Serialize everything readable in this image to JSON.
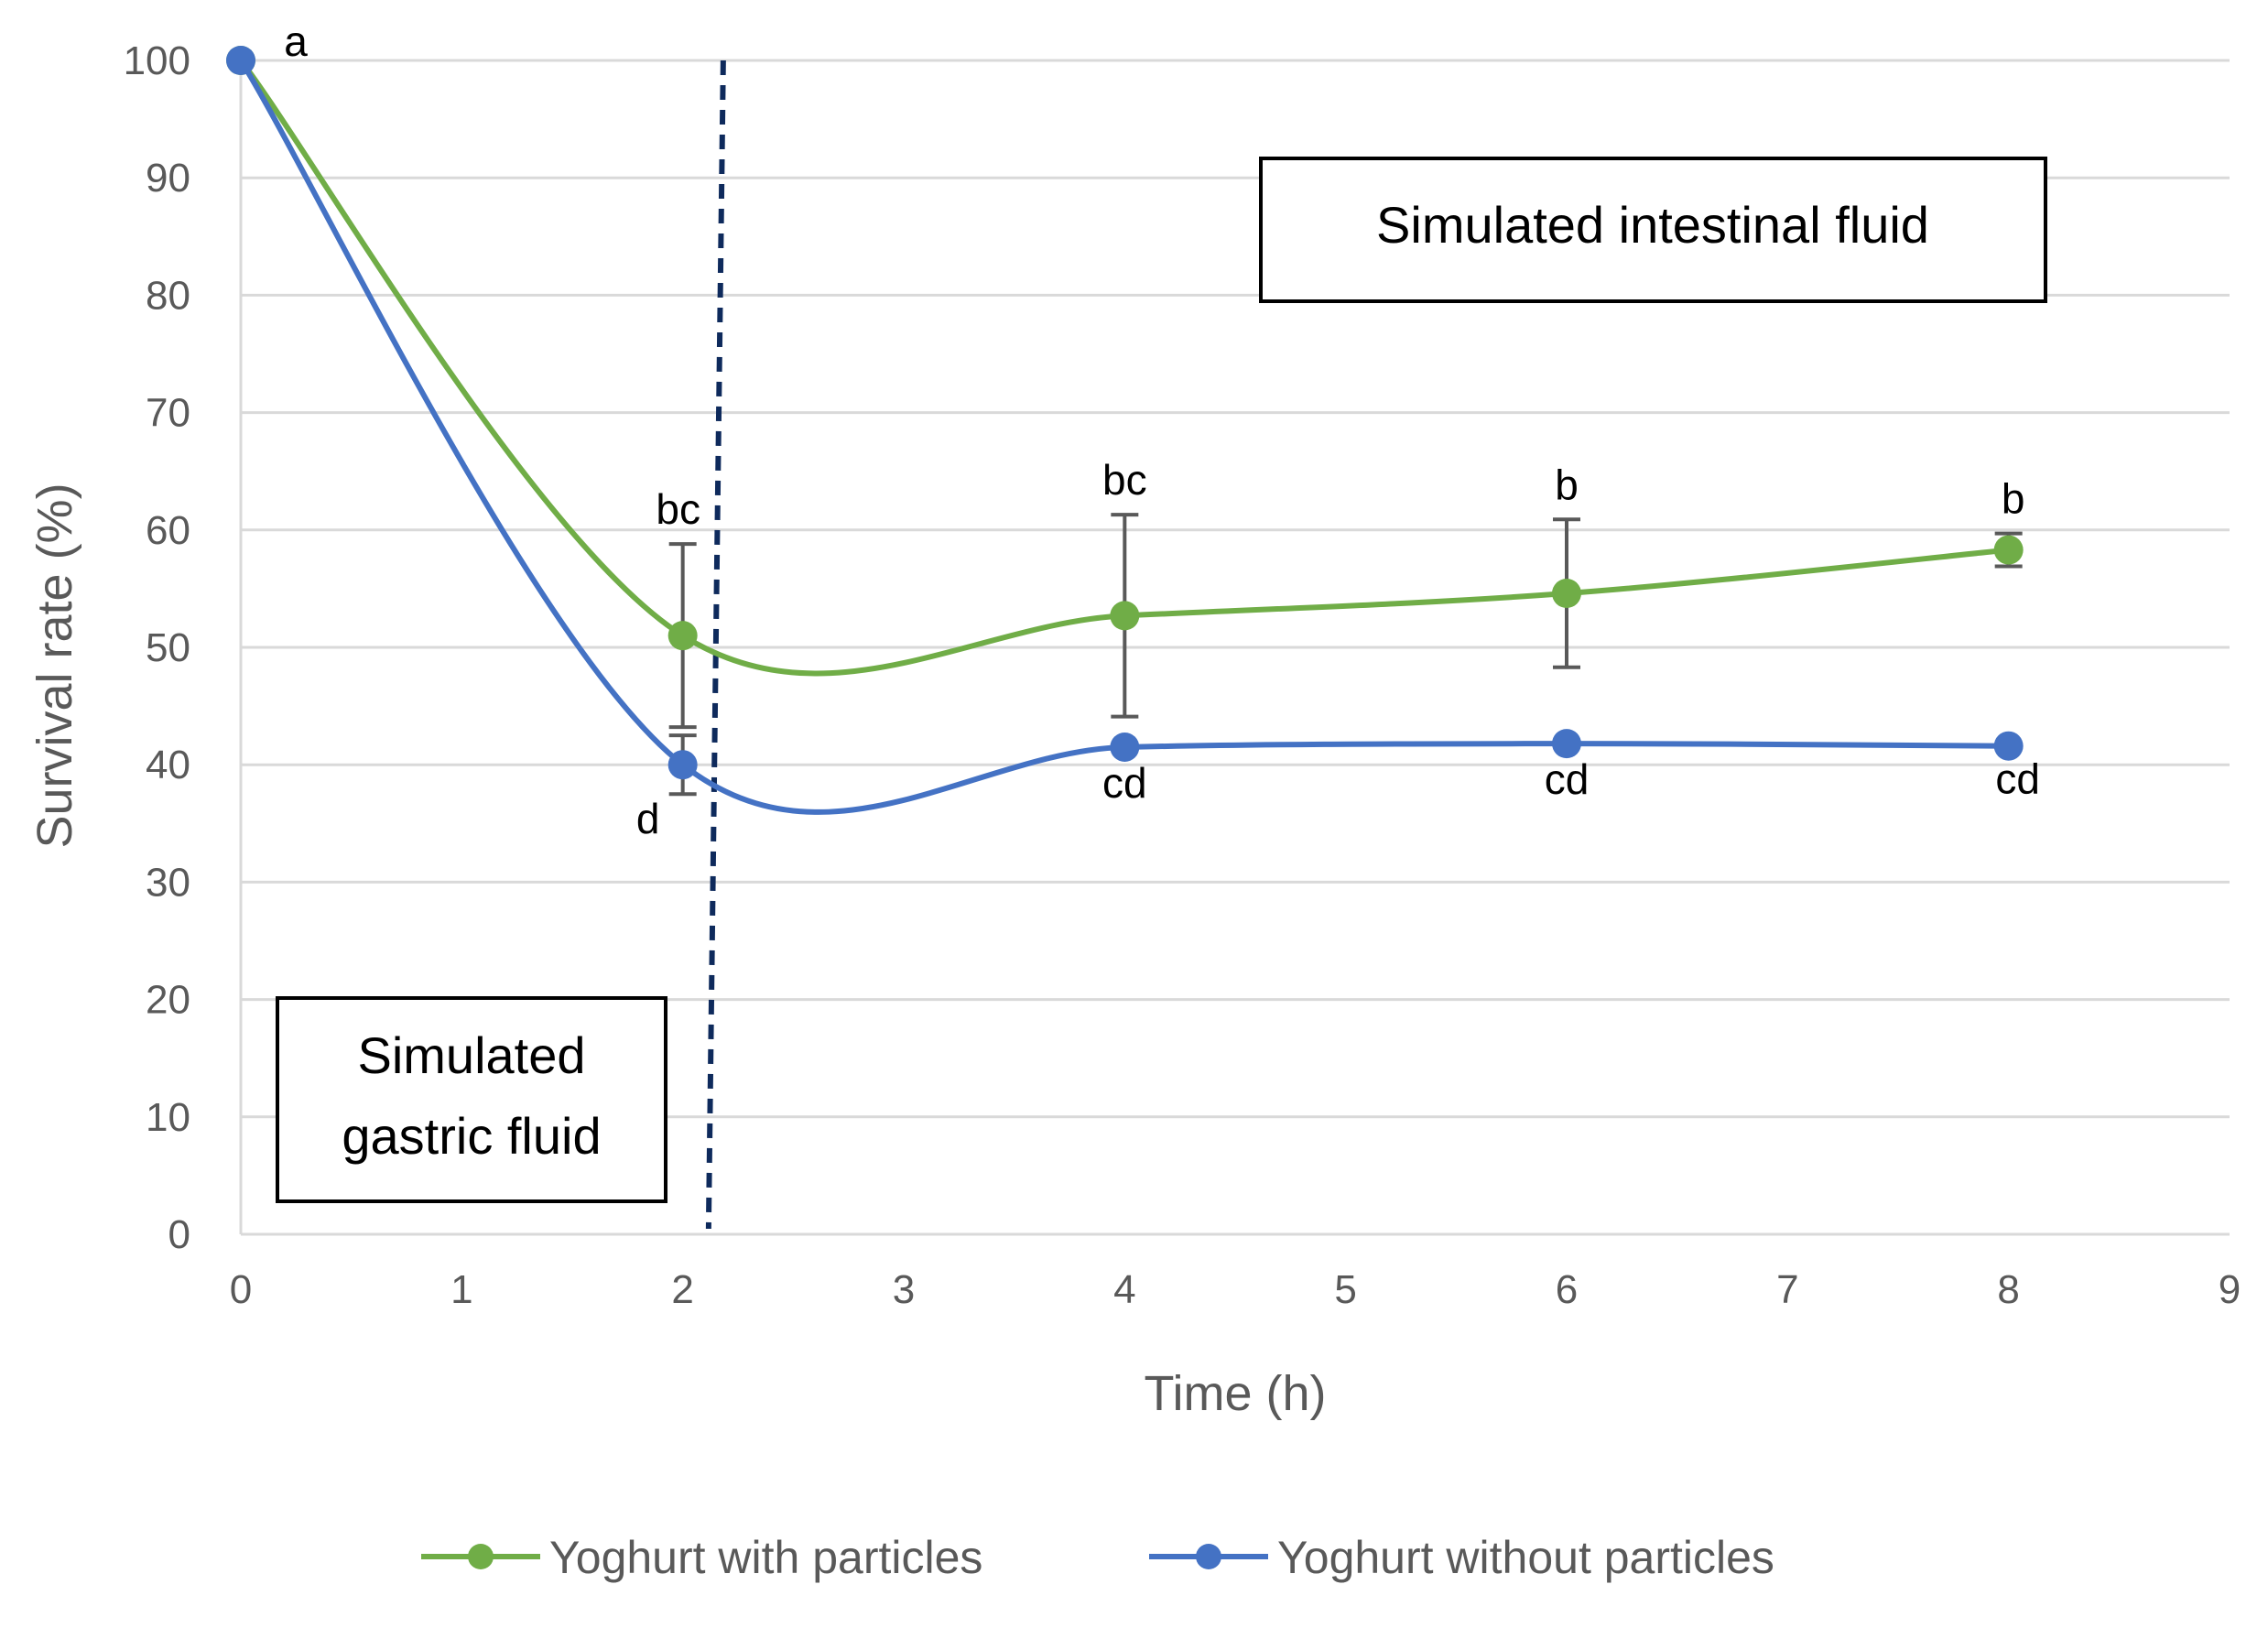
{
  "chart_data": {
    "type": "line",
    "title": "",
    "xlabel": "Time (h)",
    "ylabel": "Survival rate (%)",
    "xlim": [
      0,
      9
    ],
    "ylim": [
      0,
      100
    ],
    "x_ticks": [
      "0",
      "1",
      "2",
      "3",
      "4",
      "5",
      "6",
      "7",
      "8",
      "9"
    ],
    "y_ticks": [
      "0",
      "10",
      "20",
      "30",
      "40",
      "50",
      "60",
      "70",
      "80",
      "90",
      "100"
    ],
    "grid": true,
    "legend_position": "bottom",
    "x": [
      0,
      2,
      4,
      6,
      8
    ],
    "series": [
      {
        "name": "Yoghurt with particles",
        "color": "#70AD47",
        "values": [
          100,
          51,
          52.7,
          54.6,
          58.3
        ],
        "error": [
          0,
          7.8,
          8.6,
          6.3,
          1.4
        ],
        "letters": [
          "a",
          "bc",
          "bc",
          "b",
          "b"
        ]
      },
      {
        "name": "Yoghurt without particles",
        "color": "#4472C4",
        "values": [
          100,
          40,
          41.5,
          41.8,
          41.6
        ],
        "error": [
          0,
          2.5,
          0,
          0,
          0
        ],
        "letters": [
          "",
          "d",
          "cd",
          "cd",
          "cd"
        ]
      }
    ],
    "divider_x": 2.15,
    "divider_color": "#0E2A5C",
    "annotations": {
      "intestinal": "Simulated intestinal fluid",
      "gastric_line1": "Simulated",
      "gastric_line2": "gastric fluid"
    }
  }
}
